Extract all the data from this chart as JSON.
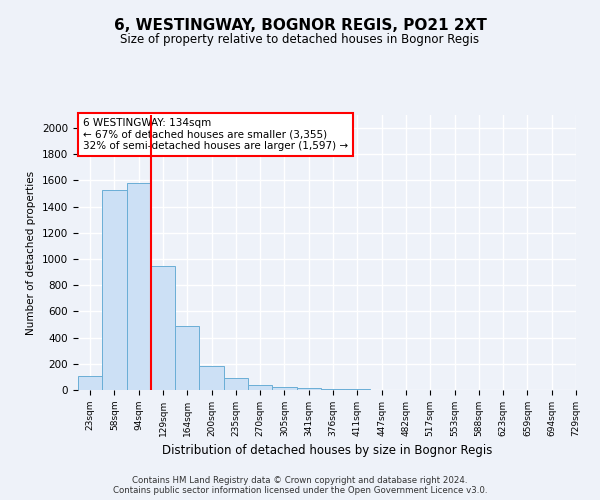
{
  "title": "6, WESTINGWAY, BOGNOR REGIS, PO21 2XT",
  "subtitle": "Size of property relative to detached houses in Bognor Regis",
  "xlabel": "Distribution of detached houses by size in Bognor Regis",
  "ylabel": "Number of detached properties",
  "bar_values": [
    110,
    1530,
    1580,
    950,
    490,
    185,
    95,
    38,
    22,
    14,
    10,
    5,
    0,
    0,
    0,
    0,
    0,
    0,
    0,
    0
  ],
  "bin_labels": [
    "23sqm",
    "58sqm",
    "94sqm",
    "129sqm",
    "164sqm",
    "200sqm",
    "235sqm",
    "270sqm",
    "305sqm",
    "341sqm",
    "376sqm",
    "411sqm",
    "447sqm",
    "482sqm",
    "517sqm",
    "553sqm",
    "588sqm",
    "623sqm",
    "659sqm",
    "694sqm",
    "729sqm"
  ],
  "bar_color": "#cce0f5",
  "bar_edge_color": "#6aaed6",
  "red_line_index": 3,
  "annotation_text": "6 WESTINGWAY: 134sqm\n← 67% of detached houses are smaller (3,355)\n32% of semi-detached houses are larger (1,597) →",
  "annotation_box_color": "white",
  "annotation_box_edge": "red",
  "ylim": [
    0,
    2100
  ],
  "yticks": [
    0,
    200,
    400,
    600,
    800,
    1000,
    1200,
    1400,
    1600,
    1800,
    2000
  ],
  "footer_text": "Contains HM Land Registry data © Crown copyright and database right 2024.\nContains public sector information licensed under the Open Government Licence v3.0.",
  "bg_color": "#eef2f9",
  "grid_color": "#ffffff"
}
